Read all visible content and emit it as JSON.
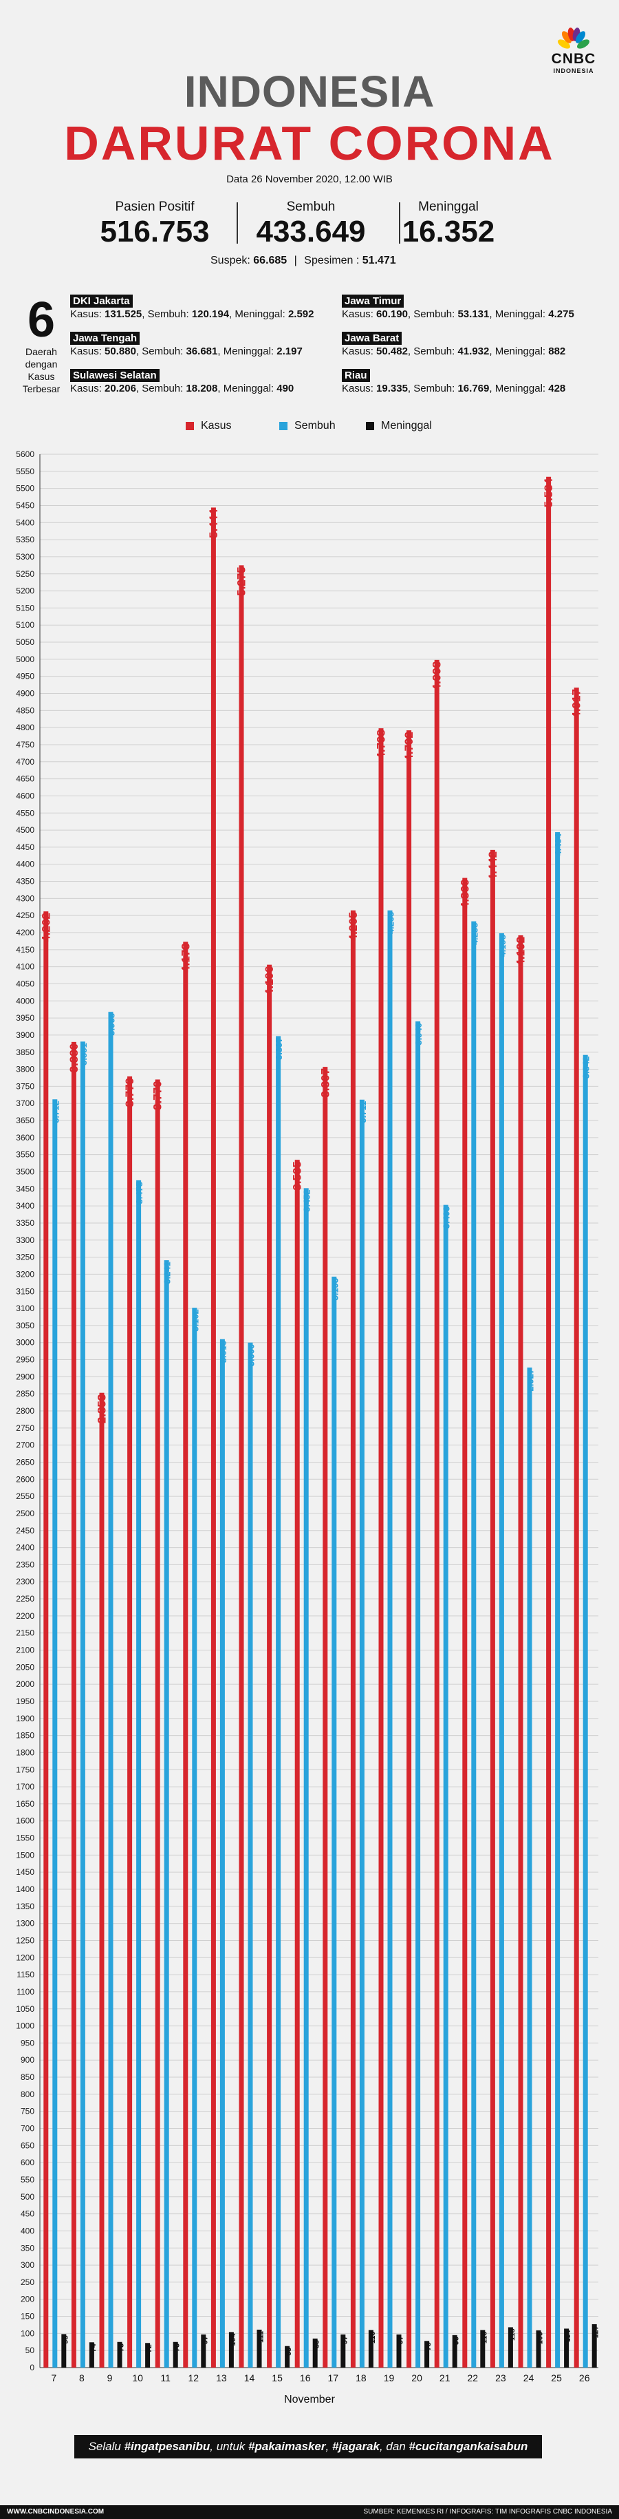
{
  "header": {
    "logo_text": "CNBC",
    "logo_sub": "INDONESIA",
    "title_line1": "INDONESIA",
    "title_line2": "DARURAT CORONA",
    "date": "Data 26 November 2020, 12.00 WIB"
  },
  "stats": [
    {
      "label": "Pasien Positif",
      "value": "516.753"
    },
    {
      "label": "Sembuh",
      "value": "433.649"
    },
    {
      "label": "Meninggal",
      "value": "16.352"
    }
  ],
  "suspek": {
    "label": "Suspek:",
    "value": "66.685",
    "sep": "|",
    "spesimen_label": "Spesimen :",
    "spesimen_value": "51.471"
  },
  "top_regions": {
    "count": "6",
    "caption": [
      "Daerah",
      "dengan",
      "Kasus",
      "Terbesar"
    ],
    "regions": [
      {
        "name": "DKI Jakarta",
        "p1": "Kasus: ",
        "kasus": "131.525",
        "p2": ", Sembuh: ",
        "sembuh": "120.194",
        "p3": ", Meninggal: ",
        "meninggal": "2.592"
      },
      {
        "name": "Jawa Timur",
        "p1": "Kasus: ",
        "kasus": "60.190",
        "p2": ", Sembuh: ",
        "sembuh": "53.131",
        "p3": ", Meninggal: ",
        "meninggal": "4.275"
      },
      {
        "name": "Jawa Tengah",
        "p1": "Kasus: ",
        "kasus": "50.880",
        "p2": ", Sembuh: ",
        "sembuh": "36.681",
        "p3": ", Meninggal: ",
        "meninggal": "2.197"
      },
      {
        "name": "Jawa Barat",
        "p1": "Kasus: ",
        "kasus": "50.482",
        "p2": ", Sembuh: ",
        "sembuh": "41.932",
        "p3": ", Meninggal: ",
        "meninggal": "882"
      },
      {
        "name": "Sulawesi Selatan",
        "p1": "Kasus: ",
        "kasus": "20.206",
        "p2": ", Sembuh: ",
        "sembuh": "18.208",
        "p3": ", Meninggal: ",
        "meninggal": "490"
      },
      {
        "name": "Riau",
        "p1": "Kasus: ",
        "kasus": "19.335",
        "p2": ", Sembuh: ",
        "sembuh": "16.769",
        "p3": ", Meninggal: ",
        "meninggal": "428"
      }
    ]
  },
  "colors": {
    "kasus": "#d7262d",
    "sembuh": "#29a3db",
    "meninggal": "#111111"
  },
  "chart_data": {
    "type": "bar",
    "xlabel": "November",
    "ylabel": "",
    "ylim": [
      0,
      5600
    ],
    "ytick_step": 50,
    "grid": true,
    "legend_placement": "top",
    "categories": [
      "7",
      "8",
      "9",
      "10",
      "11",
      "12",
      "13",
      "14",
      "15",
      "16",
      "17",
      "18",
      "19",
      "20",
      "21",
      "22",
      "23",
      "24",
      "25",
      "26"
    ],
    "series": [
      {
        "name": "Kasus",
        "values": [
          4262,
          3880,
          2853,
          3779,
          3770,
          4173,
          5444,
          5275,
          4106,
          3535,
          3807,
          4265,
          4798,
          4792,
          4998,
          4360,
          4442,
          4192,
          5534,
          4917
        ],
        "labels": [
          "4.262",
          "3.880",
          "2.853",
          "3.779",
          "3.770",
          "4.173",
          "5.444",
          "5.275",
          "4.106",
          "3.535",
          "3.807",
          "4.265",
          "4.798",
          "4.792",
          "4.998",
          "4.360",
          "4.442",
          "4.192",
          "5.534",
          "4.917"
        ]
      },
      {
        "name": "Sembuh",
        "values": [
          3712,
          3881,
          3968,
          3475,
          3241,
          3102,
          3010,
          3000,
          3897,
          3452,
          3193,
          3711,
          4265,
          3940,
          3403,
          4233,
          4198,
          2927,
          4494,
          3842
        ],
        "labels": [
          "3.712",
          "3.881",
          "3.968",
          "3.475",
          "3.241",
          "3.102",
          "3.010",
          "3.000",
          "3.897",
          "3.452",
          "3.193",
          "3.711",
          "4.265",
          "3.940",
          "3.403",
          "4.233",
          "4.198",
          "2.927",
          "4.494",
          "3.842"
        ]
      },
      {
        "name": "Meninggal",
        "values": [
          98,
          74,
          75,
          72,
          75,
          97,
          104,
          111,
          63,
          85,
          97,
          110,
          97,
          78,
          95,
          110,
          118,
          109,
          114,
          127
        ],
        "labels": [
          "98",
          "74",
          "75",
          "72",
          "75",
          "97",
          "104",
          "111",
          "63",
          "85",
          "97",
          "110",
          "97",
          "78",
          "95",
          "110",
          "118",
          "109",
          "114",
          "127"
        ]
      }
    ]
  },
  "banner": {
    "p1": "Selalu ",
    "h1": "#ingatpesanibu",
    "p2": ", untuk ",
    "h2": "#pakaimasker",
    "p3": ", ",
    "h3": "#jagarak",
    "p4": ", dan ",
    "h4": "#cucitangankaisabun"
  },
  "footer": {
    "left": "WWW.CNBCINDONESIA.COM",
    "right": "SUMBER: KEMENKES RI / INFOGRAFIS: TIM INFOGRAFIS CNBC INDONESIA"
  }
}
